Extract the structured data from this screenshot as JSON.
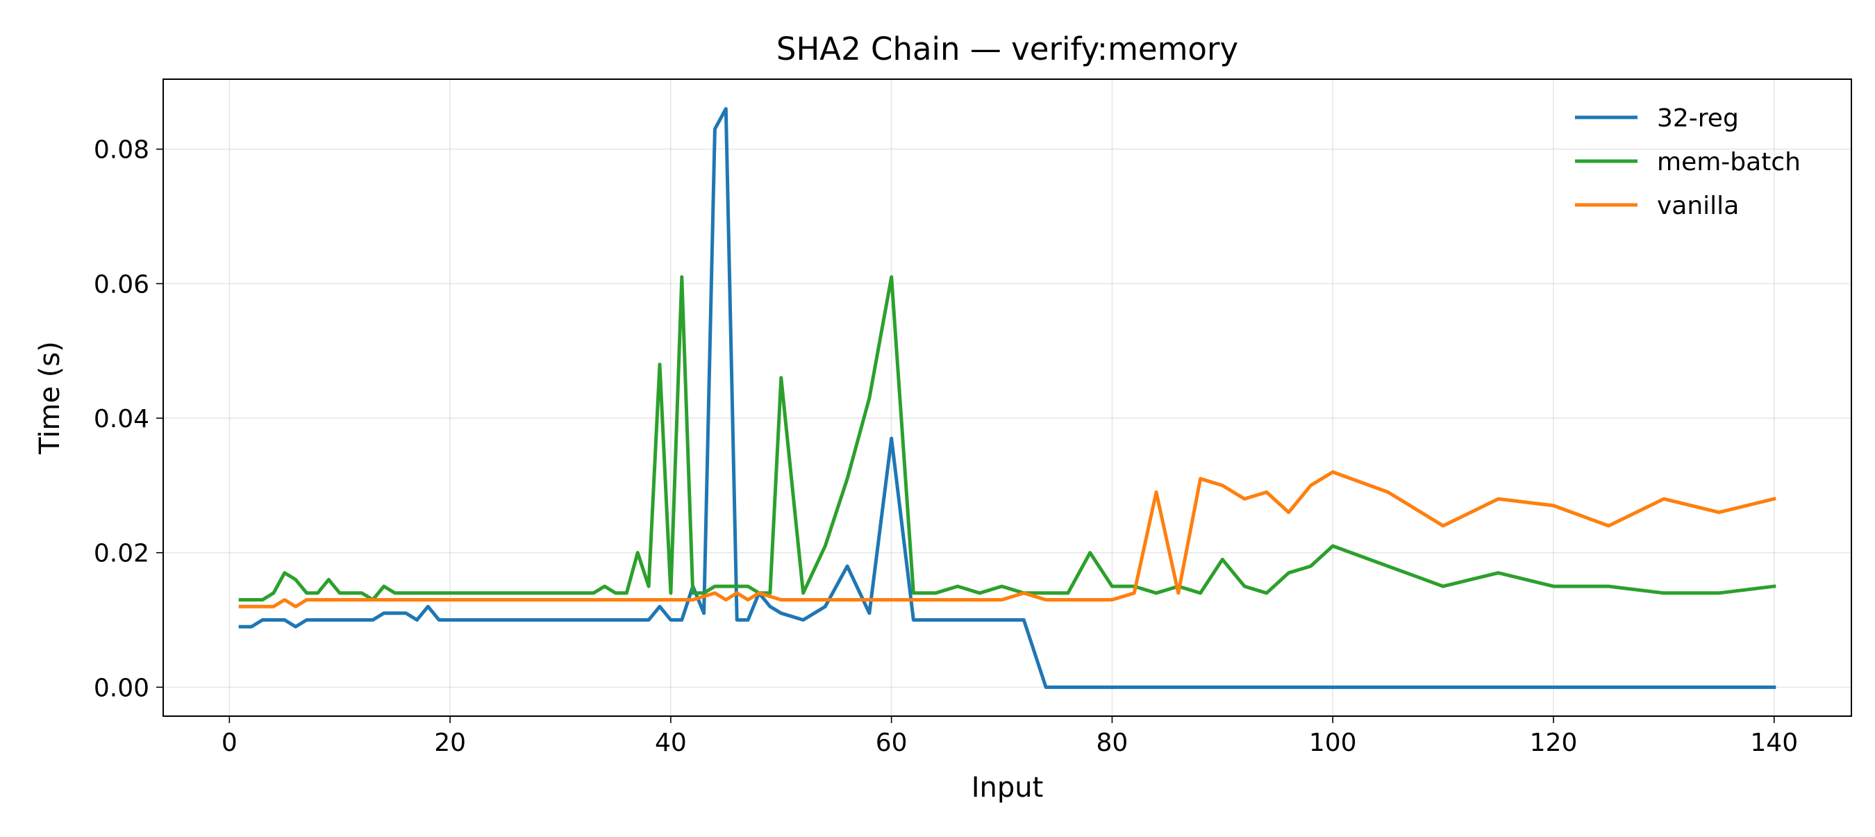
{
  "chart_data": {
    "type": "line",
    "title": "SHA2 Chain — verify:memory",
    "xlabel": "Input",
    "ylabel": "Time (s)",
    "xlim": [
      -6,
      147
    ],
    "ylim": [
      -0.0043,
      0.0904
    ],
    "xticks": [
      0,
      20,
      40,
      60,
      80,
      100,
      120,
      140
    ],
    "xtick_labels": [
      "0",
      "20",
      "40",
      "60",
      "80",
      "100",
      "120",
      "140"
    ],
    "yticks": [
      0.0,
      0.02,
      0.04,
      0.06,
      0.08
    ],
    "ytick_labels": [
      "0.00",
      "0.02",
      "0.04",
      "0.06",
      "0.08"
    ],
    "grid": true,
    "legend_position": "top-right",
    "series": [
      {
        "name": "32-reg",
        "color": "#1f77b4",
        "points": [
          [
            1,
            0.009
          ],
          [
            2,
            0.009
          ],
          [
            3,
            0.01
          ],
          [
            4,
            0.01
          ],
          [
            5,
            0.01
          ],
          [
            6,
            0.009
          ],
          [
            7,
            0.01
          ],
          [
            8,
            0.01
          ],
          [
            10,
            0.01
          ],
          [
            12,
            0.01
          ],
          [
            13,
            0.01
          ],
          [
            14,
            0.011
          ],
          [
            15,
            0.011
          ],
          [
            16,
            0.011
          ],
          [
            17,
            0.01
          ],
          [
            18,
            0.012
          ],
          [
            19,
            0.01
          ],
          [
            20,
            0.01
          ],
          [
            25,
            0.01
          ],
          [
            30,
            0.01
          ],
          [
            35,
            0.01
          ],
          [
            38,
            0.01
          ],
          [
            39,
            0.012
          ],
          [
            40,
            0.01
          ],
          [
            41,
            0.01
          ],
          [
            42,
            0.015
          ],
          [
            43,
            0.011
          ],
          [
            44,
            0.083
          ],
          [
            45,
            0.086
          ],
          [
            46,
            0.01
          ],
          [
            47,
            0.01
          ],
          [
            48,
            0.014
          ],
          [
            49,
            0.012
          ],
          [
            50,
            0.011
          ],
          [
            52,
            0.01
          ],
          [
            54,
            0.012
          ],
          [
            56,
            0.018
          ],
          [
            58,
            0.011
          ],
          [
            60,
            0.037
          ],
          [
            62,
            0.01
          ],
          [
            64,
            0.01
          ],
          [
            66,
            0.01
          ],
          [
            68,
            0.01
          ],
          [
            70,
            0.01
          ],
          [
            72,
            0.01
          ],
          [
            74,
            0.0
          ],
          [
            76,
            0.0
          ],
          [
            78,
            0.0
          ],
          [
            80,
            0.0
          ],
          [
            85,
            0.0
          ],
          [
            90,
            0.0
          ],
          [
            95,
            0.0
          ],
          [
            100,
            0.0
          ],
          [
            105,
            0.0
          ],
          [
            110,
            0.0
          ],
          [
            115,
            0.0
          ],
          [
            120,
            0.0
          ],
          [
            125,
            0.0
          ],
          [
            130,
            0.0
          ],
          [
            135,
            0.0
          ],
          [
            140,
            0.0
          ]
        ]
      },
      {
        "name": "mem-batch",
        "color": "#2ca02c",
        "points": [
          [
            1,
            0.013
          ],
          [
            2,
            0.013
          ],
          [
            3,
            0.013
          ],
          [
            4,
            0.014
          ],
          [
            5,
            0.017
          ],
          [
            6,
            0.016
          ],
          [
            7,
            0.014
          ],
          [
            8,
            0.014
          ],
          [
            9,
            0.016
          ],
          [
            10,
            0.014
          ],
          [
            11,
            0.014
          ],
          [
            12,
            0.014
          ],
          [
            13,
            0.013
          ],
          [
            14,
            0.015
          ],
          [
            15,
            0.014
          ],
          [
            16,
            0.014
          ],
          [
            20,
            0.014
          ],
          [
            25,
            0.014
          ],
          [
            30,
            0.014
          ],
          [
            33,
            0.014
          ],
          [
            34,
            0.015
          ],
          [
            35,
            0.014
          ],
          [
            36,
            0.014
          ],
          [
            37,
            0.02
          ],
          [
            38,
            0.015
          ],
          [
            39,
            0.048
          ],
          [
            40,
            0.014
          ],
          [
            41,
            0.061
          ],
          [
            42,
            0.014
          ],
          [
            43,
            0.014
          ],
          [
            44,
            0.015
          ],
          [
            45,
            0.015
          ],
          [
            46,
            0.015
          ],
          [
            47,
            0.015
          ],
          [
            48,
            0.014
          ],
          [
            49,
            0.014
          ],
          [
            50,
            0.046
          ],
          [
            52,
            0.014
          ],
          [
            54,
            0.021
          ],
          [
            56,
            0.031
          ],
          [
            58,
            0.043
          ],
          [
            60,
            0.061
          ],
          [
            62,
            0.014
          ],
          [
            64,
            0.014
          ],
          [
            66,
            0.015
          ],
          [
            68,
            0.014
          ],
          [
            70,
            0.015
          ],
          [
            72,
            0.014
          ],
          [
            74,
            0.014
          ],
          [
            76,
            0.014
          ],
          [
            78,
            0.02
          ],
          [
            80,
            0.015
          ],
          [
            82,
            0.015
          ],
          [
            84,
            0.014
          ],
          [
            86,
            0.015
          ],
          [
            88,
            0.014
          ],
          [
            90,
            0.019
          ],
          [
            92,
            0.015
          ],
          [
            94,
            0.014
          ],
          [
            96,
            0.017
          ],
          [
            98,
            0.018
          ],
          [
            100,
            0.021
          ],
          [
            105,
            0.018
          ],
          [
            110,
            0.015
          ],
          [
            115,
            0.017
          ],
          [
            120,
            0.015
          ],
          [
            125,
            0.015
          ],
          [
            130,
            0.014
          ],
          [
            135,
            0.014
          ],
          [
            140,
            0.015
          ]
        ]
      },
      {
        "name": "vanilla",
        "color": "#ff7f0e",
        "points": [
          [
            1,
            0.012
          ],
          [
            2,
            0.012
          ],
          [
            3,
            0.012
          ],
          [
            4,
            0.012
          ],
          [
            5,
            0.013
          ],
          [
            6,
            0.012
          ],
          [
            7,
            0.013
          ],
          [
            8,
            0.013
          ],
          [
            10,
            0.013
          ],
          [
            15,
            0.013
          ],
          [
            20,
            0.013
          ],
          [
            25,
            0.013
          ],
          [
            30,
            0.013
          ],
          [
            35,
            0.013
          ],
          [
            40,
            0.013
          ],
          [
            42,
            0.013
          ],
          [
            44,
            0.014
          ],
          [
            45,
            0.013
          ],
          [
            46,
            0.014
          ],
          [
            47,
            0.013
          ],
          [
            48,
            0.014
          ],
          [
            50,
            0.013
          ],
          [
            55,
            0.013
          ],
          [
            60,
            0.013
          ],
          [
            65,
            0.013
          ],
          [
            70,
            0.013
          ],
          [
            72,
            0.014
          ],
          [
            74,
            0.013
          ],
          [
            76,
            0.013
          ],
          [
            78,
            0.013
          ],
          [
            80,
            0.013
          ],
          [
            82,
            0.014
          ],
          [
            84,
            0.029
          ],
          [
            86,
            0.014
          ],
          [
            88,
            0.031
          ],
          [
            90,
            0.03
          ],
          [
            92,
            0.028
          ],
          [
            94,
            0.029
          ],
          [
            96,
            0.026
          ],
          [
            98,
            0.03
          ],
          [
            100,
            0.032
          ],
          [
            105,
            0.029
          ],
          [
            110,
            0.024
          ],
          [
            115,
            0.028
          ],
          [
            120,
            0.027
          ],
          [
            125,
            0.024
          ],
          [
            130,
            0.028
          ],
          [
            135,
            0.026
          ],
          [
            140,
            0.028
          ]
        ]
      }
    ]
  }
}
